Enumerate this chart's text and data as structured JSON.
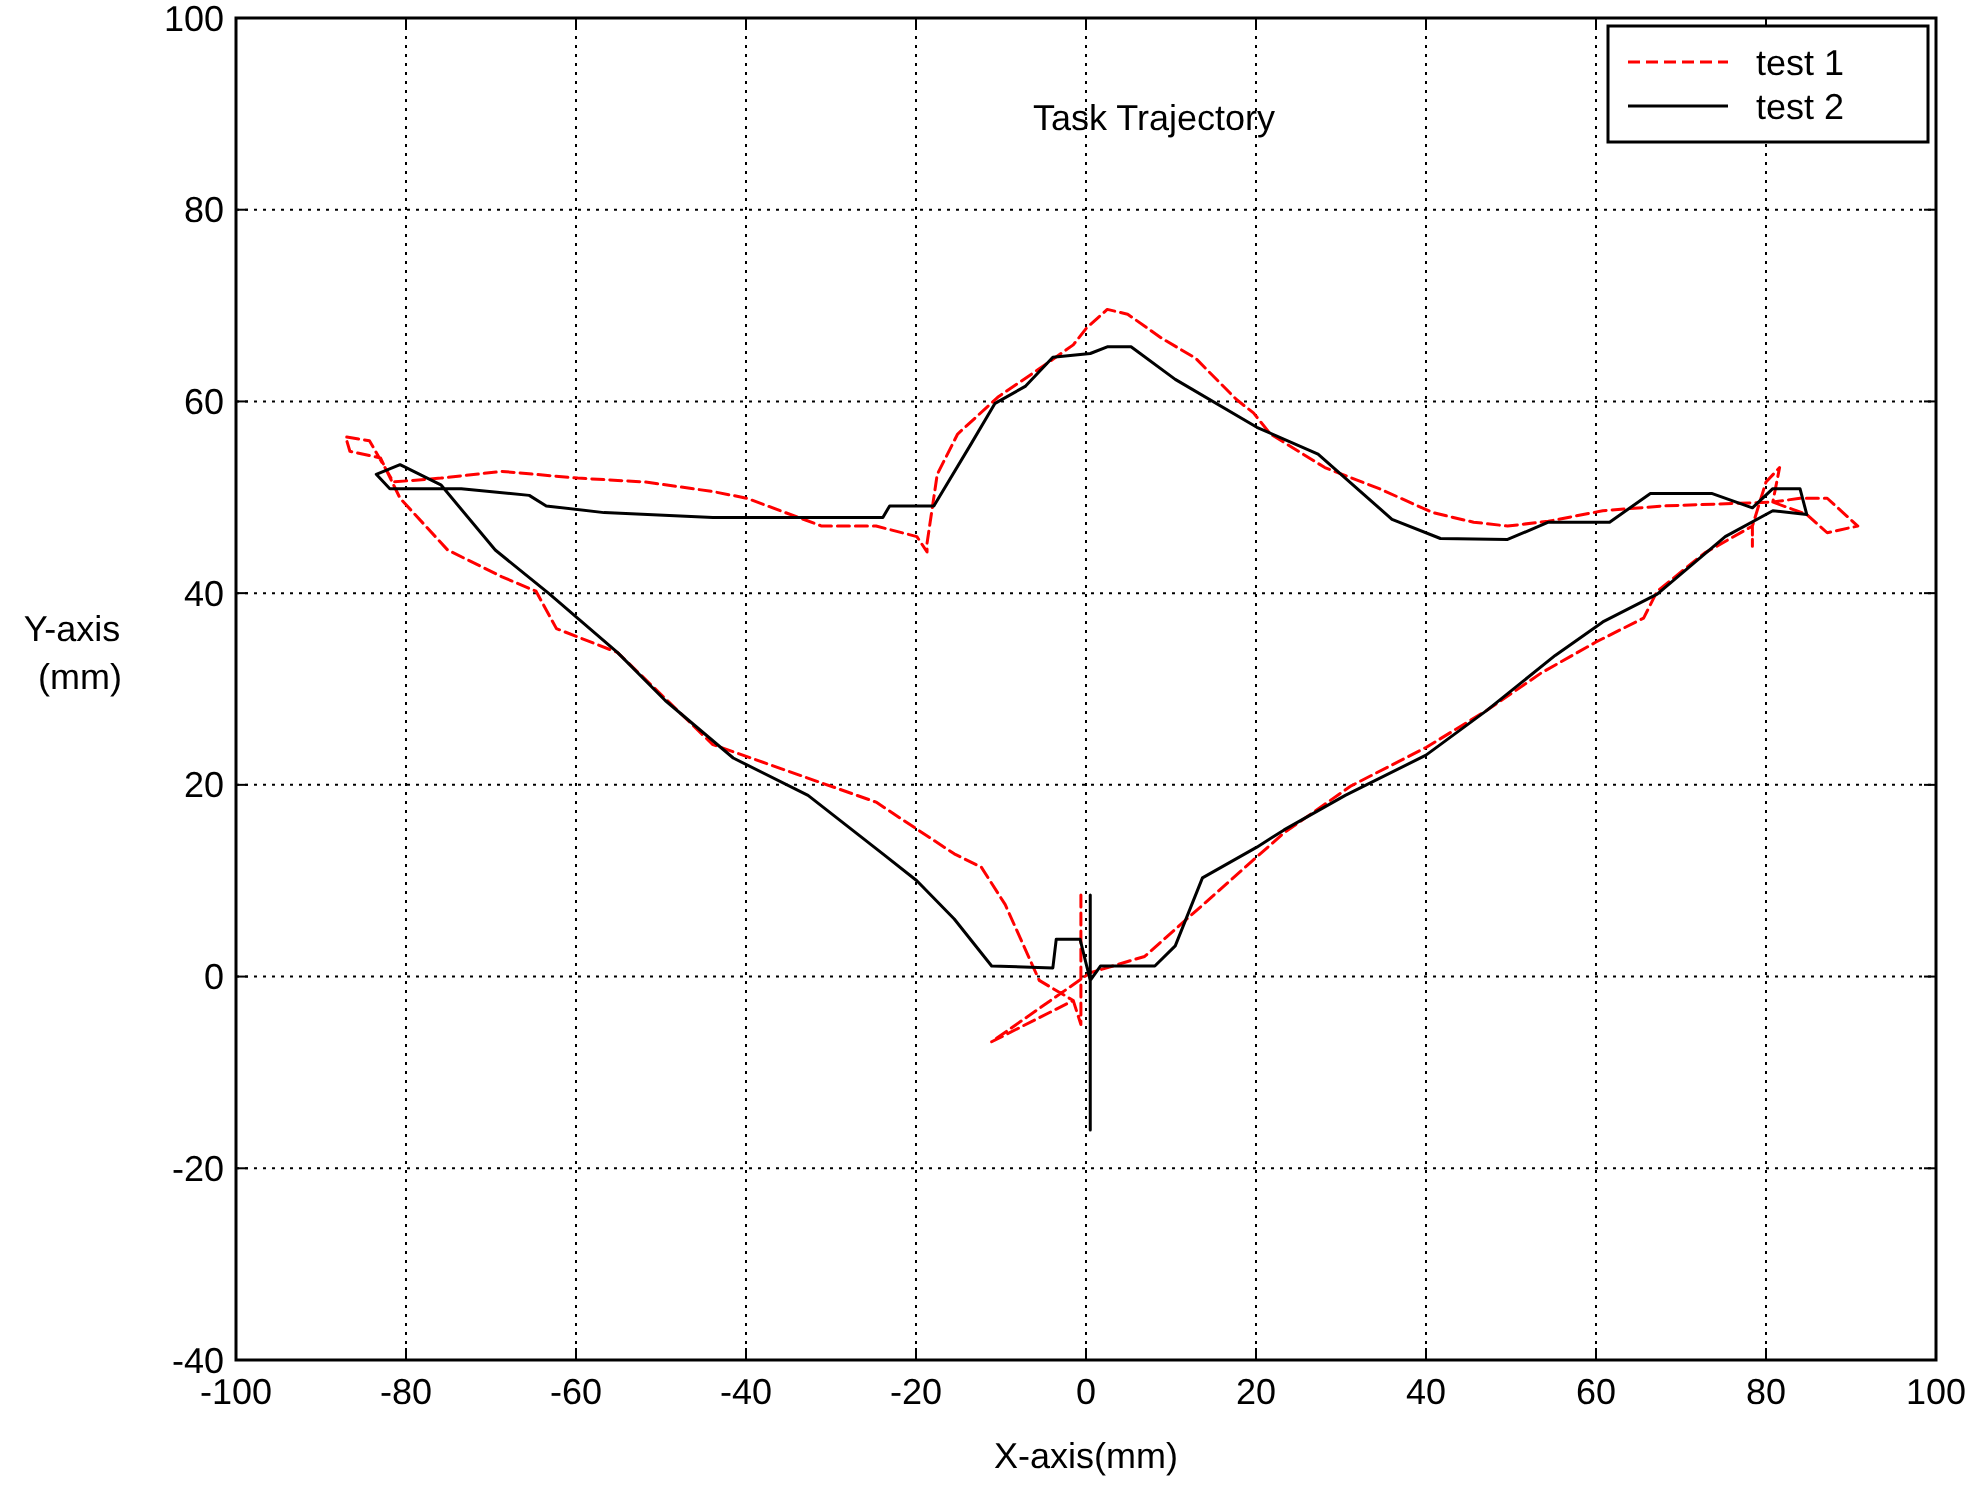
{
  "chart_data": {
    "type": "line",
    "title": "Task Trajectory",
    "xlabel": "X-axis(mm)",
    "ylabel": "Y-axis (mm)",
    "xlim": [
      -100,
      100
    ],
    "ylim": [
      -40,
      100
    ],
    "xticks": [
      -100,
      -80,
      -60,
      -40,
      -20,
      0,
      20,
      40,
      60,
      80,
      100
    ],
    "yticks": [
      -40,
      -20,
      0,
      20,
      40,
      60,
      80,
      100
    ],
    "grid": true,
    "legend": "top right",
    "marker": "none",
    "series": [
      {
        "name": "test 1",
        "color": "#ff0000",
        "line_style": "dashed",
        "x": [
          -0.6,
          -0.6,
          -1.5,
          -11.1,
          0.5,
          6.9,
          23.3,
          31.2,
          40.0,
          47.2,
          53.6,
          60.0,
          65.6,
          67.2,
          72.8,
          78.4,
          78.4,
          78.4,
          80.0,
          81.6,
          80.8,
          84.0,
          87.2,
          90.8,
          87.2,
          84.8,
          80.8,
          68.0,
          60.8,
          54.4,
          49.6,
          45.6,
          40.8,
          34.5,
          28.1,
          21.7,
          19.7,
          17.7,
          12.9,
          8.9,
          4.9,
          2.5,
          0.1,
          -1.5,
          -5.5,
          -10.3,
          -15.1,
          -17.5,
          -18.7,
          -18.7,
          -19.9,
          -24.7,
          -31.1,
          -39.9,
          -43.9,
          -51.9,
          -59.8,
          -68.7,
          -75.9,
          -81.5,
          -84.3,
          -87.1,
          -86.6,
          -83.0,
          -80.7,
          -75.1,
          -68.7,
          -64.7,
          -62.3,
          -55.1,
          -43.9,
          -35.9,
          -24.7,
          -15.5,
          -12.3,
          -9.5,
          -5.5,
          -1.5
        ],
        "values": [
          8.5,
          -5,
          -2.5,
          -6.8,
          0.4,
          2.1,
          15.0,
          19.9,
          23.9,
          27.8,
          31.7,
          34.9,
          37.4,
          40.2,
          44.2,
          47.0,
          44.9,
          47.0,
          51.6,
          53.1,
          49.5,
          49.9,
          49.9,
          47.0,
          46.3,
          48.2,
          49.5,
          49.1,
          48.6,
          47.5,
          47.0,
          47.4,
          48.4,
          50.9,
          53.1,
          56.6,
          58.8,
          60.2,
          64.5,
          66.6,
          69.1,
          69.6,
          67.7,
          65.9,
          63.4,
          60.5,
          56.6,
          52.4,
          45.2,
          44.3,
          45.9,
          47.0,
          47.0,
          49.9,
          50.6,
          51.6,
          52.0,
          52.7,
          52.0,
          51.6,
          55.9,
          56.3,
          54.8,
          54.1,
          49.9,
          44.5,
          41.7,
          40.2,
          36.3,
          33.8,
          24.2,
          21.7,
          18.2,
          12.8,
          11.4,
          7.5,
          -0.4,
          -2.5
        ]
      },
      {
        "name": "test 2",
        "color": "#000000",
        "line_style": "solid",
        "x": [
          0.5,
          0.5,
          0.5,
          -0.7,
          -3.5,
          -3.9,
          -11.1,
          -15.5,
          -19.9,
          -23.9,
          -32.7,
          -41.5,
          -49.5,
          -55.1,
          -63.1,
          -69.5,
          -75.9,
          -80.7,
          -83.5,
          -81.9,
          -73.5,
          -65.5,
          -63.5,
          -56.7,
          -43.9,
          -23.9,
          -23.1,
          -17.9,
          -13.5,
          -10.7,
          -7.1,
          -3.9,
          0.5,
          2.5,
          5.3,
          10.5,
          20.1,
          27.3,
          36.0,
          41.7,
          49.6,
          54.4,
          61.6,
          66.4,
          73.6,
          78.4,
          80.8,
          84.0,
          84.8,
          80.8,
          75.2,
          67.2,
          60.8,
          55.2,
          47.2,
          40.0,
          30.5,
          23.3,
          20.1,
          13.7,
          10.5,
          8.1,
          1.7,
          0.5
        ],
        "values": [
          8.5,
          -16,
          -0.4,
          3.9,
          3.9,
          0.9,
          1.1,
          6.0,
          10,
          12.8,
          18.9,
          22.8,
          28.8,
          33.8,
          39.9,
          44.5,
          51.3,
          53.4,
          52.4,
          50.9,
          50.9,
          50.2,
          49.1,
          48.4,
          47.9,
          47.9,
          49.1,
          49.1,
          55.6,
          59.8,
          61.6,
          64.6,
          65.0,
          65.7,
          65.7,
          62.3,
          57.3,
          54.5,
          47.7,
          45.7,
          45.6,
          47.4,
          47.4,
          50.4,
          50.4,
          48.9,
          50.9,
          50.9,
          48.2,
          48.6,
          45.9,
          39.9,
          37.0,
          33.5,
          27.8,
          23.1,
          18.9,
          15.3,
          13.5,
          10.3,
          3.2,
          1.1,
          1.1,
          -0.4
        ]
      }
    ]
  }
}
